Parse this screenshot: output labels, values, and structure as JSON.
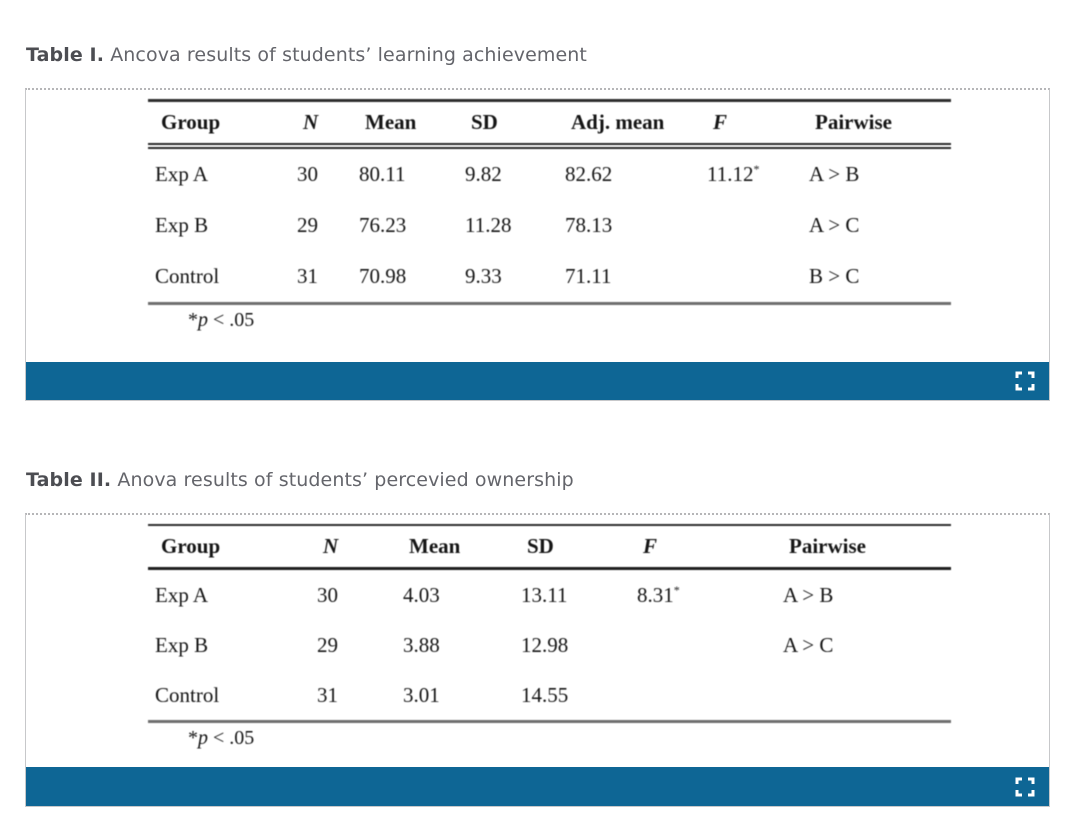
{
  "colors": {
    "toolbar_bar": "#0e6695",
    "frame_border": "#c7c8ca",
    "caption_label": "#4c4d52",
    "caption_text": "#64656b"
  },
  "figures": [
    {
      "caption_label": "Table I.",
      "caption_text": "Ancova results of students’ learning achievement",
      "expand_icon": "fullscreen-expand-icon",
      "table": {
        "columns": [
          {
            "label": "Group",
            "italic": false
          },
          {
            "label": "N",
            "italic": true
          },
          {
            "label": "Mean",
            "italic": false
          },
          {
            "label": "SD",
            "italic": false
          },
          {
            "label": "Adj. mean",
            "italic": false
          },
          {
            "label": "F",
            "italic": true
          },
          {
            "label": "Pairwise",
            "italic": false
          }
        ],
        "rows": [
          [
            "Exp A",
            "30",
            "80.11",
            "9.82",
            "82.62",
            "11.12*",
            "A > B"
          ],
          [
            "Exp B",
            "29",
            "76.23",
            "11.28",
            "78.13",
            "",
            "A > C"
          ],
          [
            "Control",
            "31",
            "70.98",
            "9.33",
            "71.11",
            "",
            "B > C"
          ]
        ],
        "footnote": "*p < .05"
      }
    },
    {
      "caption_label": "Table II.",
      "caption_text": "Anova results of students’ percevied ownership",
      "expand_icon": "fullscreen-expand-icon",
      "table": {
        "columns": [
          {
            "label": "Group",
            "italic": false
          },
          {
            "label": "N",
            "italic": true
          },
          {
            "label": "Mean",
            "italic": false
          },
          {
            "label": "SD",
            "italic": false
          },
          {
            "label": "F",
            "italic": true
          },
          {
            "label": "Pairwise",
            "italic": false
          }
        ],
        "rows": [
          [
            "Exp A",
            "30",
            "4.03",
            "13.11",
            "8.31*",
            "A > B"
          ],
          [
            "Exp B",
            "29",
            "3.88",
            "12.98",
            "",
            "A > C"
          ],
          [
            "Control",
            "31",
            "3.01",
            "14.55",
            "",
            ""
          ]
        ],
        "footnote": "*p < .05"
      }
    }
  ]
}
